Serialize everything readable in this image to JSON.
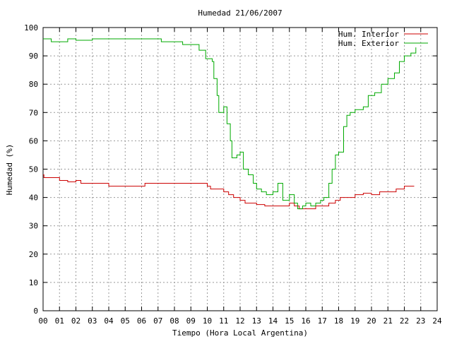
{
  "chart_data": {
    "type": "line",
    "title": "Humedad 21/06/2007",
    "xlabel": "Tiempo (Hora Local Argentina)",
    "ylabel": "Humedad (%)",
    "xlim": [
      0,
      24
    ],
    "ylim": [
      0,
      100
    ],
    "x_ticks": [
      "00",
      "01",
      "02",
      "03",
      "04",
      "05",
      "06",
      "07",
      "08",
      "09",
      "10",
      "11",
      "12",
      "13",
      "14",
      "15",
      "16",
      "17",
      "18",
      "19",
      "20",
      "21",
      "22",
      "23",
      "24"
    ],
    "y_ticks": [
      "0",
      "10",
      "20",
      "30",
      "40",
      "50",
      "60",
      "70",
      "80",
      "90",
      "100"
    ],
    "grid": true,
    "legend_position": "top-right",
    "series": [
      {
        "name": "Hum. Interior",
        "color": "#cc0000",
        "points": [
          [
            0,
            48
          ],
          [
            0.05,
            47
          ],
          [
            0.5,
            47
          ],
          [
            1,
            46
          ],
          [
            1.3,
            46
          ],
          [
            1.5,
            45.5
          ],
          [
            2,
            46
          ],
          [
            2.3,
            45
          ],
          [
            3,
            45
          ],
          [
            4,
            44
          ],
          [
            5,
            44
          ],
          [
            6,
            44
          ],
          [
            6.2,
            45
          ],
          [
            7,
            45
          ],
          [
            8,
            45
          ],
          [
            9,
            45
          ],
          [
            9.5,
            45
          ],
          [
            10,
            44
          ],
          [
            10.2,
            43
          ],
          [
            10.9,
            43
          ],
          [
            11,
            42
          ],
          [
            11.3,
            41
          ],
          [
            11.6,
            40
          ],
          [
            12,
            39
          ],
          [
            12.3,
            38
          ],
          [
            12.9,
            38
          ],
          [
            13,
            37.5
          ],
          [
            13.5,
            37
          ],
          [
            14,
            37
          ],
          [
            14.7,
            37
          ],
          [
            15,
            38
          ],
          [
            15.3,
            37
          ],
          [
            15.6,
            36
          ],
          [
            16,
            36
          ],
          [
            16.4,
            36
          ],
          [
            16.6,
            37
          ],
          [
            17,
            37
          ],
          [
            17.4,
            38
          ],
          [
            17.8,
            39
          ],
          [
            18.1,
            40
          ],
          [
            18.5,
            40
          ],
          [
            19,
            41
          ],
          [
            19.5,
            41.5
          ],
          [
            20,
            41
          ],
          [
            20.5,
            42
          ],
          [
            21,
            42
          ],
          [
            21.5,
            43
          ],
          [
            22,
            44
          ],
          [
            22.6,
            44
          ]
        ]
      },
      {
        "name": "Hum. Exterior",
        "color": "#00aa00",
        "points": [
          [
            0,
            96
          ],
          [
            0.5,
            95
          ],
          [
            1,
            95
          ],
          [
            1.5,
            96
          ],
          [
            2,
            95.5
          ],
          [
            3,
            96
          ],
          [
            4,
            96
          ],
          [
            5,
            96
          ],
          [
            6,
            96
          ],
          [
            7,
            96
          ],
          [
            7.2,
            95
          ],
          [
            8.2,
            95
          ],
          [
            8.5,
            94
          ],
          [
            9,
            94
          ],
          [
            9.5,
            92
          ],
          [
            9.9,
            89
          ],
          [
            10.3,
            88
          ],
          [
            10.4,
            82
          ],
          [
            10.6,
            76
          ],
          [
            10.7,
            70
          ],
          [
            11,
            72
          ],
          [
            11.2,
            66
          ],
          [
            11.4,
            60
          ],
          [
            11.5,
            54
          ],
          [
            11.8,
            55
          ],
          [
            12,
            56
          ],
          [
            12.2,
            50
          ],
          [
            12.5,
            48
          ],
          [
            12.8,
            45
          ],
          [
            13,
            43
          ],
          [
            13.3,
            42
          ],
          [
            13.6,
            41
          ],
          [
            14,
            42
          ],
          [
            14.3,
            45
          ],
          [
            14.6,
            39
          ],
          [
            15,
            41
          ],
          [
            15.3,
            38
          ],
          [
            15.5,
            36
          ],
          [
            15.8,
            37
          ],
          [
            16,
            38
          ],
          [
            16.3,
            37
          ],
          [
            16.6,
            38
          ],
          [
            16.9,
            39
          ],
          [
            17.1,
            40
          ],
          [
            17.4,
            45
          ],
          [
            17.6,
            50
          ],
          [
            17.8,
            55
          ],
          [
            18,
            56
          ],
          [
            18.3,
            65
          ],
          [
            18.5,
            69
          ],
          [
            18.7,
            70
          ],
          [
            19,
            71
          ],
          [
            19.5,
            72
          ],
          [
            19.8,
            76
          ],
          [
            20.2,
            77
          ],
          [
            20.6,
            80
          ],
          [
            21,
            82
          ],
          [
            21.4,
            84
          ],
          [
            21.7,
            88
          ],
          [
            22,
            90
          ],
          [
            22.4,
            91
          ],
          [
            22.7,
            93
          ]
        ]
      }
    ]
  }
}
